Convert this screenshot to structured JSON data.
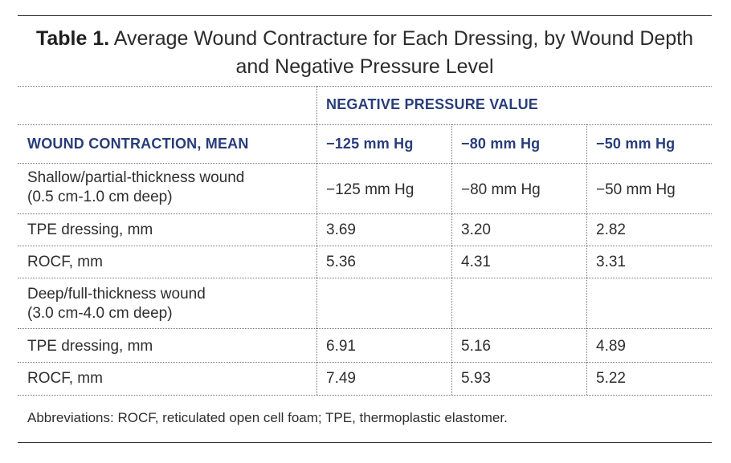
{
  "table": {
    "caption_label": "Table 1.",
    "caption_text": "Average Wound Contracture for Each Dressing, by Wound Depth and Negative Pressure Level",
    "group_header": "NEGATIVE PRESSURE VALUE",
    "row_header": "WOUND CONTRACTION, MEAN",
    "columns": [
      "−125 mm Hg",
      "−80 mm Hg",
      "−50 mm Hg"
    ],
    "rows": [
      {
        "label_line1": "Shallow/partial-thickness wound",
        "label_line2": "(0.5 cm-1.0 cm deep)",
        "values": [
          "−125 mm Hg",
          "−80 mm Hg",
          "−50 mm Hg"
        ]
      },
      {
        "label_line1": "TPE dressing, mm",
        "label_line2": "",
        "values": [
          "3.69",
          "3.20",
          "2.82"
        ]
      },
      {
        "label_line1": "ROCF, mm",
        "label_line2": "",
        "values": [
          "5.36",
          "4.31",
          "3.31"
        ]
      },
      {
        "label_line1": "Deep/full-thickness wound",
        "label_line2": "(3.0 cm-4.0 cm deep)",
        "values": [
          "",
          "",
          ""
        ]
      },
      {
        "label_line1": "TPE dressing, mm",
        "label_line2": "",
        "values": [
          "6.91",
          "5.16",
          "4.89"
        ]
      },
      {
        "label_line1": "ROCF, mm",
        "label_line2": "",
        "values": [
          "7.49",
          "5.93",
          "5.22"
        ]
      }
    ],
    "footnote": "Abbreviations: ROCF, reticulated open cell foam; TPE, thermoplastic elastomer."
  }
}
